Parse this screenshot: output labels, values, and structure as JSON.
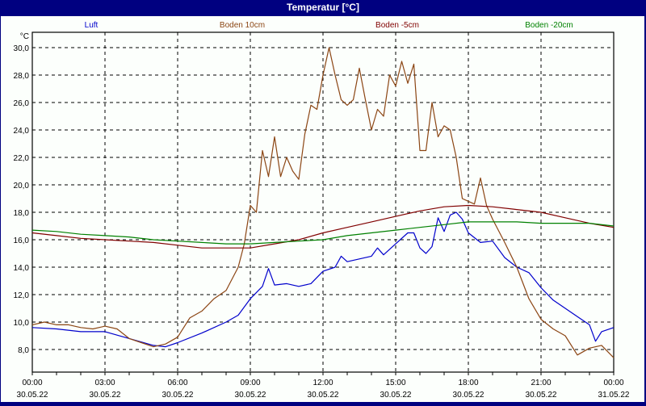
{
  "window": {
    "title": "Temperatur [°C]"
  },
  "chart_data": {
    "type": "line",
    "title": "Temperatur [°C]",
    "xlabel": "",
    "ylabel": "°C",
    "ylim": [
      6.2,
      31.1
    ],
    "xlim_hours": [
      0,
      24
    ],
    "grid": true,
    "legend_position": "top",
    "y_ticks": [
      "30,0",
      "28,0",
      "26,0",
      "24,0",
      "22,0",
      "20,0",
      "18,0",
      "16,0",
      "14,0",
      "12,0",
      "10,0",
      "8,0"
    ],
    "y_tick_values": [
      30,
      28,
      26,
      24,
      22,
      20,
      18,
      16,
      14,
      12,
      10,
      8
    ],
    "x_ticks": [
      {
        "time": "00:00",
        "date": "30.05.22",
        "h": 0
      },
      {
        "time": "03:00",
        "date": "30.05.22",
        "h": 3
      },
      {
        "time": "06:00",
        "date": "30.05.22",
        "h": 6
      },
      {
        "time": "09:00",
        "date": "30.05.22",
        "h": 9
      },
      {
        "time": "12:00",
        "date": "30.05.22",
        "h": 12
      },
      {
        "time": "15:00",
        "date": "30.05.22",
        "h": 15
      },
      {
        "time": "18:00",
        "date": "30.05.22",
        "h": 18
      },
      {
        "time": "21:00",
        "date": "30.05.22",
        "h": 21
      },
      {
        "time": "00:00",
        "date": "31.05.22",
        "h": 24
      }
    ],
    "series": [
      {
        "name": "Luft",
        "color": "#0000cc",
        "x": [
          0,
          1,
          2,
          3,
          4,
          5,
          5.5,
          6,
          7,
          8,
          8.5,
          9,
          9.5,
          9.75,
          10,
          10.5,
          11,
          11.5,
          12,
          12.5,
          12.75,
          13,
          14,
          14.25,
          14.5,
          15,
          15.5,
          15.75,
          16,
          16.25,
          16.5,
          16.75,
          17,
          17.25,
          17.5,
          17.75,
          18,
          18.5,
          19,
          19.5,
          20,
          20.5,
          21,
          21.5,
          22,
          22.5,
          23,
          23.25,
          23.5,
          24
        ],
        "values": [
          9.6,
          9.5,
          9.3,
          9.3,
          8.8,
          8.3,
          8.2,
          8.5,
          9.2,
          10.0,
          10.5,
          11.7,
          12.6,
          13.9,
          12.7,
          12.8,
          12.6,
          12.8,
          13.7,
          14.0,
          14.8,
          14.4,
          14.8,
          15.4,
          14.9,
          15.7,
          16.5,
          16.5,
          15.4,
          15.0,
          15.5,
          17.6,
          16.6,
          17.8,
          18.0,
          17.5,
          16.5,
          15.8,
          15.9,
          14.7,
          14.0,
          13.6,
          12.5,
          11.6,
          11.0,
          10.4,
          9.8,
          8.6,
          9.3,
          9.6
        ]
      },
      {
        "name": "Boden 10cm",
        "color": "#8b4513",
        "x": [
          0,
          0.5,
          1,
          1.5,
          2,
          2.5,
          3,
          3.5,
          4,
          4.5,
          5,
          5.5,
          6,
          6.5,
          7,
          7.5,
          8,
          8.5,
          8.75,
          9,
          9.25,
          9.5,
          9.75,
          10,
          10.25,
          10.5,
          10.75,
          11,
          11.25,
          11.5,
          11.75,
          12,
          12.25,
          12.5,
          12.75,
          13,
          13.25,
          13.5,
          13.75,
          14,
          14.25,
          14.5,
          14.75,
          15,
          15.25,
          15.5,
          15.75,
          16,
          16.25,
          16.5,
          16.75,
          17,
          17.25,
          17.5,
          17.75,
          18,
          18.25,
          18.5,
          18.75,
          19,
          19.5,
          20,
          20.5,
          21,
          21.5,
          22,
          22.5,
          23,
          23.5,
          24
        ],
        "values": [
          9.8,
          10.0,
          9.8,
          9.8,
          9.6,
          9.5,
          9.7,
          9.5,
          8.8,
          8.5,
          8.2,
          8.4,
          8.9,
          10.3,
          10.8,
          11.7,
          12.3,
          14.0,
          15.7,
          18.5,
          18.0,
          22.5,
          20.6,
          23.5,
          20.6,
          22.0,
          21.0,
          20.4,
          23.7,
          25.8,
          25.5,
          28.0,
          30.0,
          28.0,
          26.2,
          25.8,
          26.2,
          28.5,
          26.2,
          24.0,
          25.5,
          25.0,
          28.0,
          27.2,
          29.0,
          27.4,
          28.8,
          22.5,
          22.5,
          26.0,
          23.5,
          24.3,
          24.0,
          22.0,
          19.0,
          18.8,
          18.6,
          20.5,
          18.5,
          17.5,
          15.8,
          14.0,
          11.7,
          10.2,
          9.5,
          9.0,
          7.6,
          8.1,
          8.3,
          7.4
        ]
      },
      {
        "name": "Boden -5cm",
        "color": "#800000",
        "x": [
          0,
          1,
          2,
          3,
          4,
          5,
          6,
          7,
          8,
          9,
          10,
          11,
          12,
          13,
          14,
          15,
          16,
          17,
          18,
          19,
          20,
          21,
          22,
          23,
          24
        ],
        "values": [
          16.5,
          16.3,
          16.1,
          16.0,
          15.9,
          15.8,
          15.6,
          15.4,
          15.4,
          15.4,
          15.7,
          16.0,
          16.5,
          16.9,
          17.3,
          17.7,
          18.1,
          18.4,
          18.5,
          18.4,
          18.2,
          18.0,
          17.6,
          17.2,
          16.9
        ]
      },
      {
        "name": "Boden -20cm",
        "color": "#008000",
        "x": [
          0,
          1,
          2,
          3,
          4,
          5,
          6,
          7,
          8,
          9,
          10,
          11,
          12,
          13,
          14,
          15,
          16,
          17,
          18,
          19,
          20,
          21,
          22,
          23,
          24
        ],
        "values": [
          16.7,
          16.6,
          16.4,
          16.3,
          16.2,
          16.0,
          15.9,
          15.8,
          15.7,
          15.7,
          15.8,
          15.9,
          16.0,
          16.3,
          16.5,
          16.7,
          16.9,
          17.1,
          17.3,
          17.3,
          17.3,
          17.2,
          17.2,
          17.2,
          17.0
        ]
      }
    ]
  }
}
